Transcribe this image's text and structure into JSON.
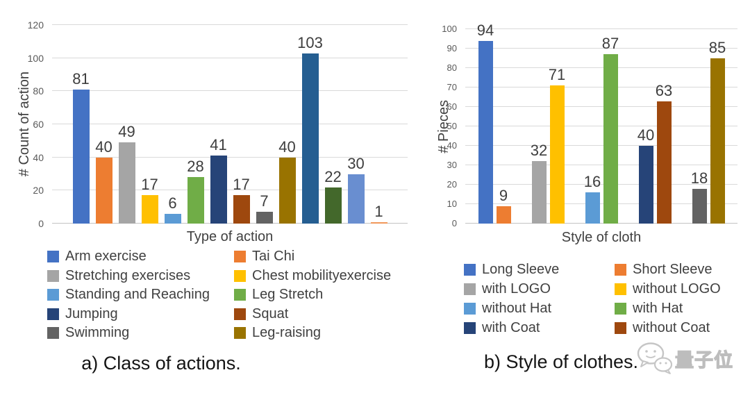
{
  "watermark": {
    "text": "量子位",
    "icon": "chat-bubbles-icon"
  },
  "chart_data": [
    {
      "panel": "a",
      "type": "bar",
      "caption": "a) Class of actions.",
      "xlabel": "Type of action",
      "ylabel": "# Count of action",
      "ylim": [
        0,
        120
      ],
      "yticks": [
        0,
        20,
        40,
        60,
        80,
        100,
        120
      ],
      "grid": true,
      "legend_position": "bottom",
      "bars": [
        {
          "label": "Arm exercise",
          "value": 81,
          "color": "#4472C4"
        },
        {
          "label": "Tai Chi",
          "value": 40,
          "color": "#ED7D31"
        },
        {
          "label": "Stretching exercises",
          "value": 49,
          "color": "#A5A5A5"
        },
        {
          "label": "Chest mobilityexercise",
          "value": 17,
          "color": "#FFC000"
        },
        {
          "label": "Standing and Reaching",
          "value": 6,
          "color": "#5B9BD5"
        },
        {
          "label": "Leg Stretch",
          "value": 28,
          "color": "#70AD47"
        },
        {
          "label": "Jumping",
          "value": 41,
          "color": "#264478"
        },
        {
          "label": "Squat",
          "value": 17,
          "color": "#9E480E"
        },
        {
          "label": "Swimming",
          "value": 7,
          "color": "#636363"
        },
        {
          "label": "Leg-raising",
          "value": 40,
          "color": "#997300"
        },
        {
          "value": 103,
          "color": "#255E91"
        },
        {
          "value": 22,
          "color": "#43682B"
        },
        {
          "value": 30,
          "color": "#698ED0"
        },
        {
          "value": 1,
          "color": "#F1975A"
        }
      ],
      "legend": [
        {
          "label": "Arm exercise",
          "color": "#4472C4"
        },
        {
          "label": "Stretching exercises",
          "color": "#A5A5A5"
        },
        {
          "label": "Standing and Reaching",
          "color": "#5B9BD5"
        },
        {
          "label": "Jumping",
          "color": "#264478"
        },
        {
          "label": "Swimming",
          "color": "#636363"
        },
        {
          "label": "Tai Chi",
          "color": "#ED7D31"
        },
        {
          "label": "Chest mobilityexercise",
          "color": "#FFC000"
        },
        {
          "label": "Leg Stretch",
          "color": "#70AD47"
        },
        {
          "label": "Squat",
          "color": "#9E480E"
        },
        {
          "label": "Leg-raising",
          "color": "#997300"
        }
      ]
    },
    {
      "panel": "b",
      "type": "bar",
      "caption": "b) Style of clothes.",
      "xlabel": "Style of cloth",
      "ylabel": "# Pieces",
      "ylim": [
        0,
        100
      ],
      "yticks": [
        0,
        10,
        20,
        30,
        40,
        50,
        60,
        70,
        80,
        90,
        100
      ],
      "grid": true,
      "legend_position": "bottom",
      "group_size": 2,
      "bars": [
        {
          "label": "Long Sleeve",
          "value": 94,
          "color": "#4472C4"
        },
        {
          "label": "Short Sleeve",
          "value": 9,
          "color": "#ED7D31"
        },
        {
          "label": "with LOGO",
          "value": 32,
          "color": "#A5A5A5"
        },
        {
          "label": "without LOGO",
          "value": 71,
          "color": "#FFC000"
        },
        {
          "label": "without Hat",
          "value": 16,
          "color": "#5B9BD5"
        },
        {
          "label": "with Hat",
          "value": 87,
          "color": "#70AD47"
        },
        {
          "label": "with Coat",
          "value": 40,
          "color": "#264478"
        },
        {
          "label": "without Coat",
          "value": 63,
          "color": "#9E480E"
        },
        {
          "value": 18,
          "color": "#636363"
        },
        {
          "value": 85,
          "color": "#997300"
        }
      ],
      "legend": [
        {
          "label": "Long Sleeve",
          "color": "#4472C4"
        },
        {
          "label": "with LOGO",
          "color": "#A5A5A5"
        },
        {
          "label": "without Hat",
          "color": "#5B9BD5"
        },
        {
          "label": "with Coat",
          "color": "#264478"
        },
        {
          "label": "Short Sleeve",
          "color": "#ED7D31"
        },
        {
          "label": "without LOGO",
          "color": "#FFC000"
        },
        {
          "label": "with Hat",
          "color": "#70AD47"
        },
        {
          "label": "without Coat",
          "color": "#9E480E"
        }
      ]
    }
  ]
}
